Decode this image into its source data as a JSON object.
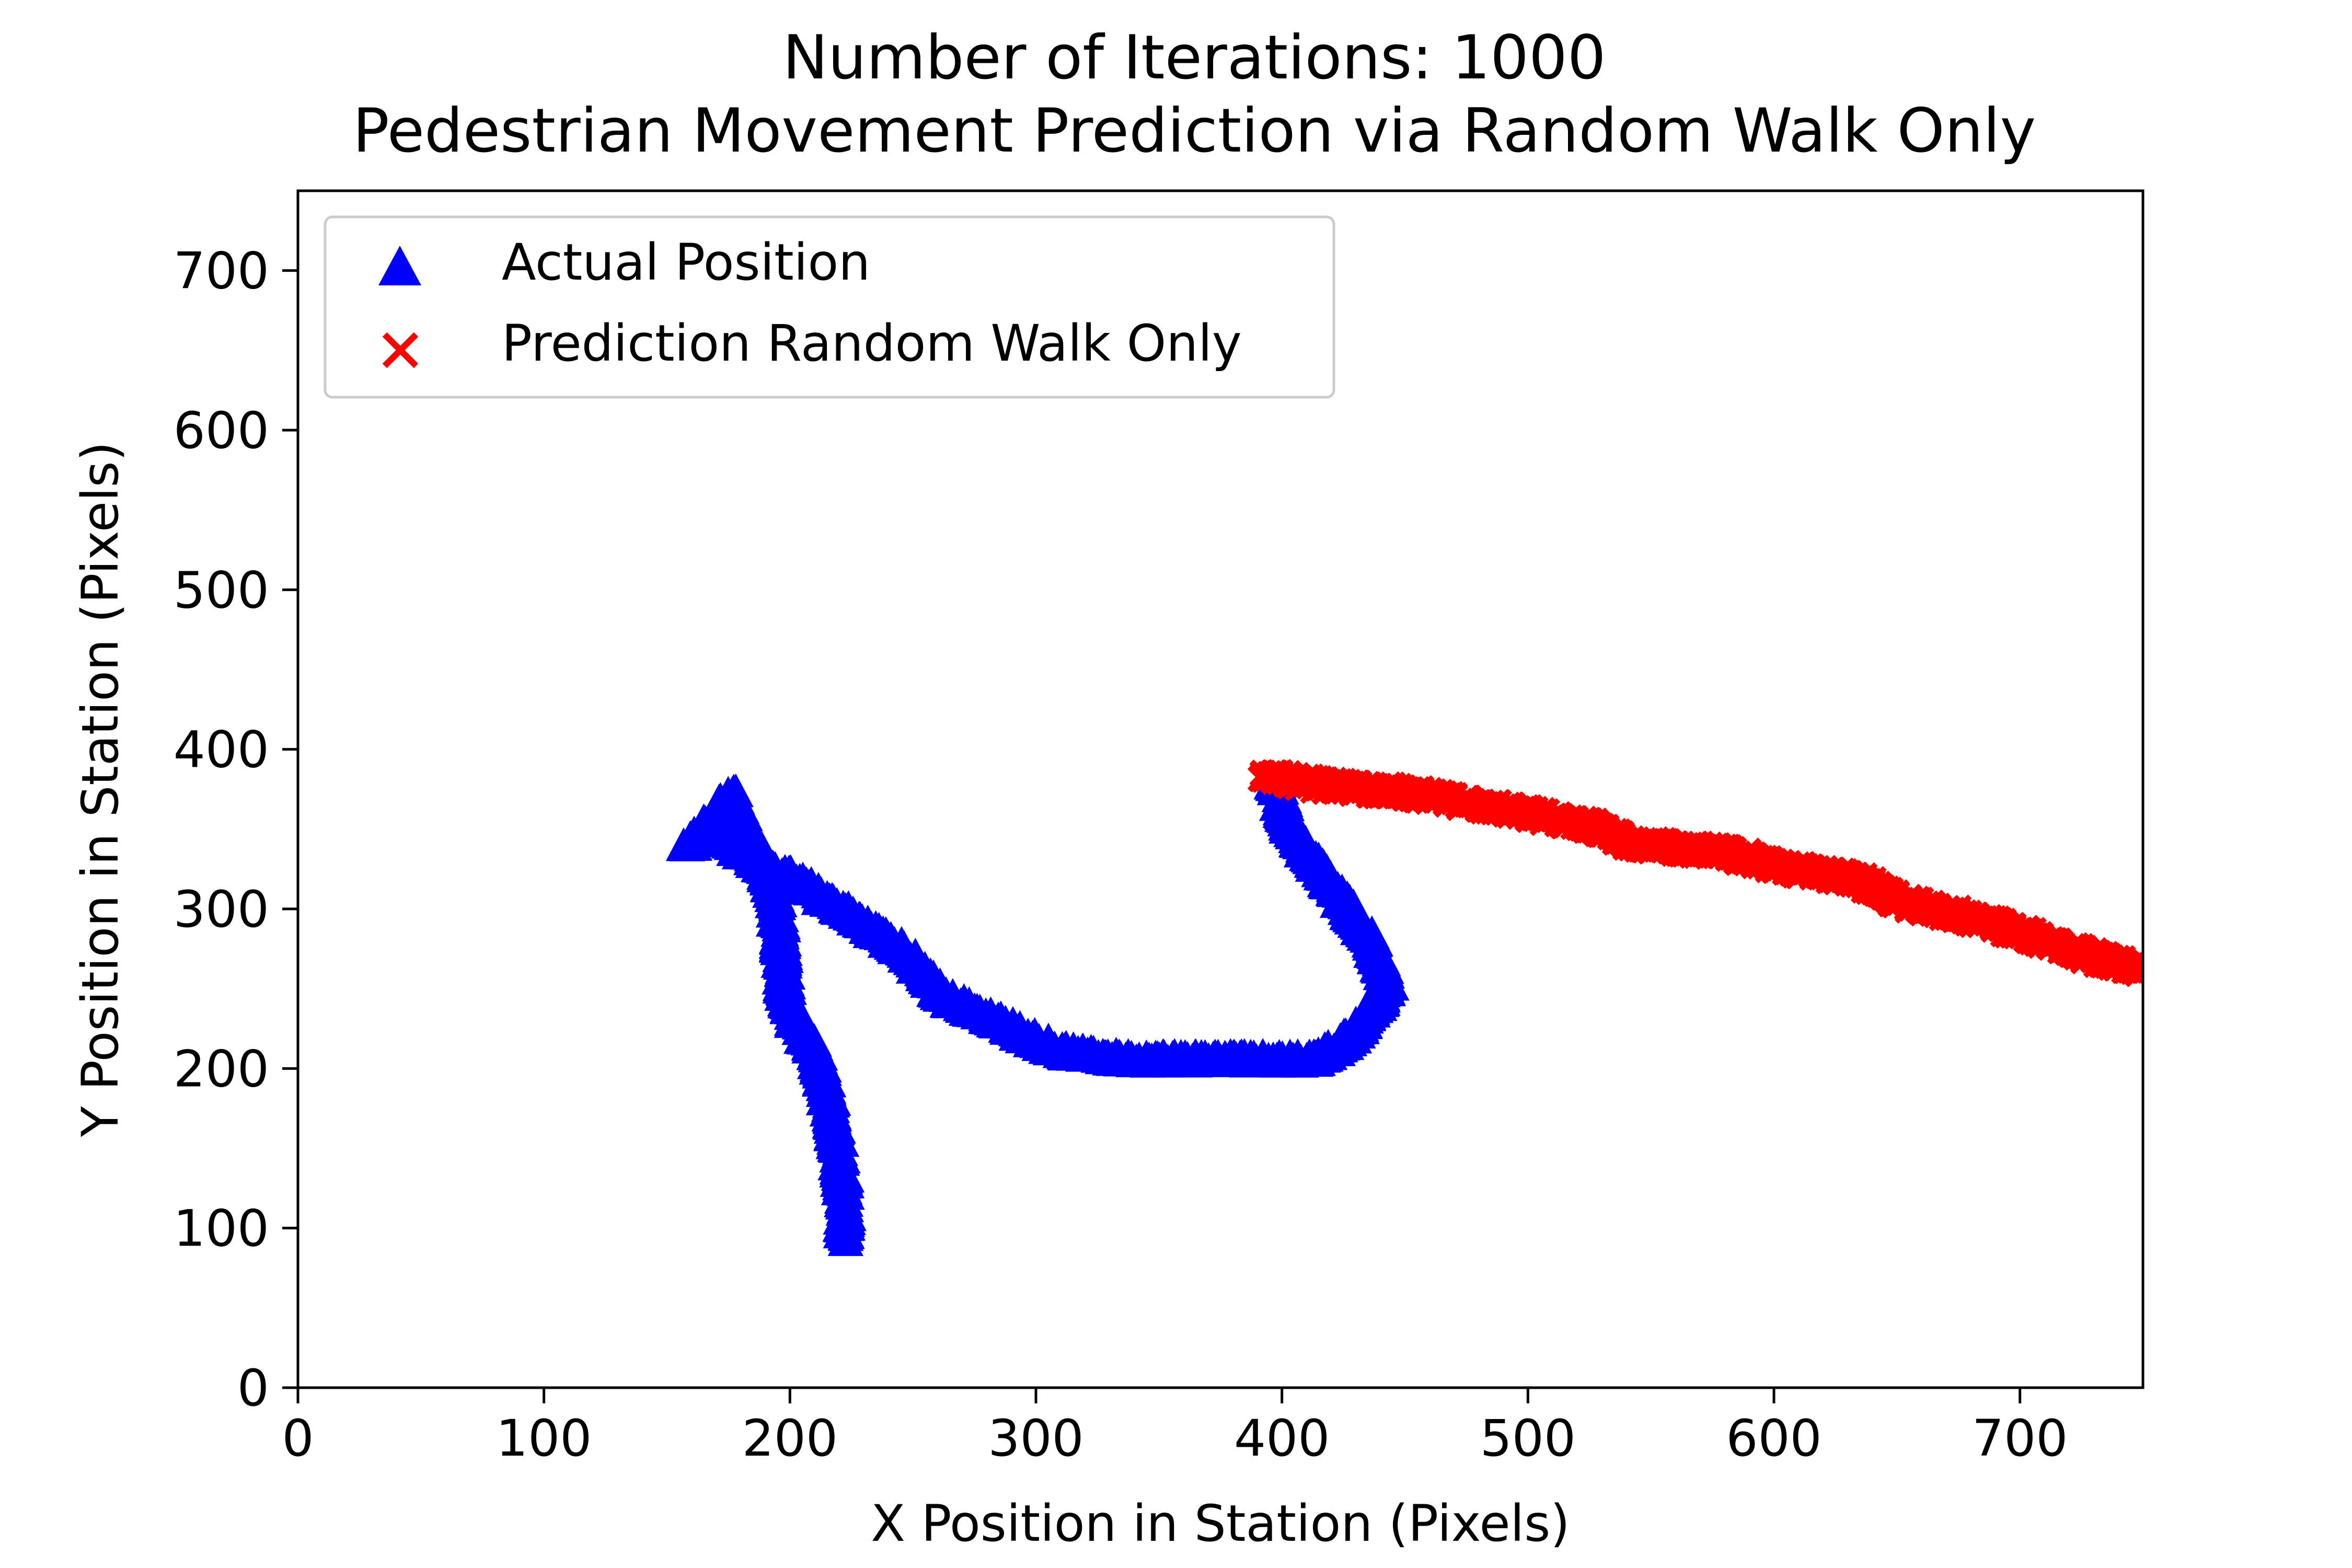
{
  "chart_data": {
    "type": "scatter",
    "title_lines": [
      "Number of Iterations: 1000",
      "Pedestrian Movement Prediction via Random Walk Only"
    ],
    "xlabel": "X Position in Station (Pixels)",
    "ylabel": "Y Position in Station (Pixels)",
    "xlim": [
      0,
      750
    ],
    "ylim": [
      0,
      750
    ],
    "xticks": [
      "0",
      "100",
      "200",
      "300",
      "400",
      "500",
      "600",
      "700"
    ],
    "yticks": [
      "0",
      "100",
      "200",
      "300",
      "400",
      "500",
      "600",
      "700"
    ],
    "grid": false,
    "legend_position": "upper-left",
    "series": [
      {
        "name": "Actual Position",
        "marker": "triangle",
        "color": "#0000ff",
        "path": [
          [
            222,
            92
          ],
          [
            222,
            120
          ],
          [
            220,
            145
          ],
          [
            217,
            170
          ],
          [
            214,
            190
          ],
          [
            211,
            208
          ],
          [
            202,
            230
          ],
          [
            198,
            250
          ],
          [
            196,
            275
          ],
          [
            195,
            300
          ],
          [
            190,
            325
          ],
          [
            183,
            345
          ],
          [
            176,
            372
          ],
          [
            165,
            348
          ],
          [
            158,
            340
          ],
          [
            172,
            345
          ],
          [
            185,
            330
          ],
          [
            205,
            315
          ],
          [
            225,
            295
          ],
          [
            245,
            275
          ],
          [
            262,
            245
          ],
          [
            285,
            228
          ],
          [
            310,
            210
          ],
          [
            335,
            205
          ],
          [
            360,
            205
          ],
          [
            390,
            205
          ],
          [
            415,
            205
          ],
          [
            430,
            222
          ],
          [
            443,
            250
          ],
          [
            436,
            280
          ],
          [
            423,
            308
          ],
          [
            410,
            335
          ],
          [
            402,
            355
          ],
          [
            397,
            380
          ]
        ],
        "count": 1000
      },
      {
        "name": "Prediction Random Walk Only",
        "marker": "x",
        "color": "#ff0000",
        "path": [
          [
            392,
            385
          ],
          [
            405,
            380
          ],
          [
            425,
            376
          ],
          [
            445,
            374
          ],
          [
            465,
            369
          ],
          [
            485,
            364
          ],
          [
            505,
            358
          ],
          [
            525,
            352
          ],
          [
            540,
            342
          ],
          [
            560,
            338
          ],
          [
            580,
            336
          ],
          [
            600,
            327
          ],
          [
            620,
            322
          ],
          [
            635,
            318
          ],
          [
            650,
            305
          ],
          [
            670,
            298
          ],
          [
            690,
            290
          ],
          [
            710,
            280
          ],
          [
            730,
            270
          ],
          [
            748,
            262
          ]
        ],
        "count": 1000
      }
    ]
  }
}
